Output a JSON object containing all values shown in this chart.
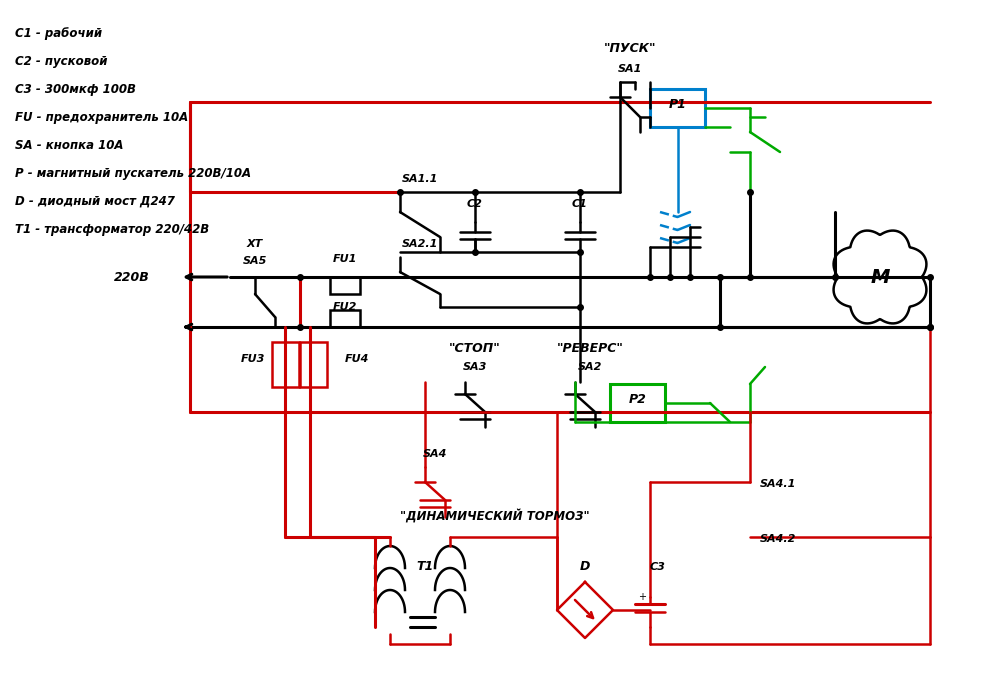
{
  "title": "",
  "bg_color": "#ffffff",
  "legend_lines": [
    "C1 - рабочий",
    "C2 - пусковой",
    "C3 - 300мкф 100В",
    "FU - предохранитель 10А",
    "SA - кнопка 10А",
    "P - магнитный пускатель 220В/10А",
    "D - диодный мост Д247",
    "T1 - трансформатор 220/42В"
  ],
  "black": "#000000",
  "red": "#cc0000",
  "blue": "#0080cc",
  "green": "#00aa00",
  "dkblue": "#0055aa"
}
